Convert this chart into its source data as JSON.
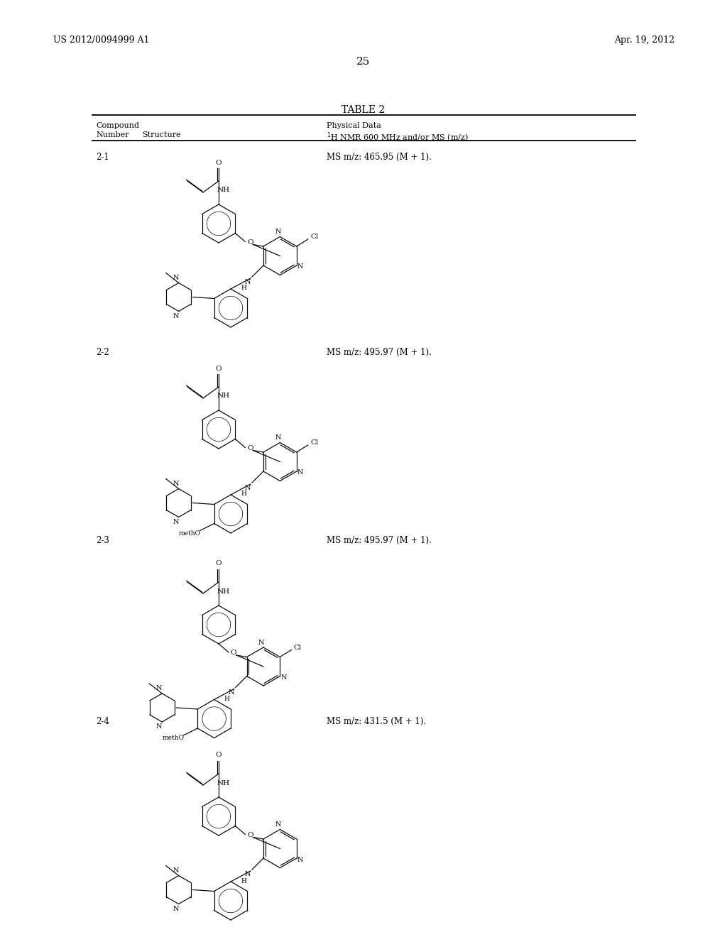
{
  "background_color": "#ffffff",
  "header_left": "US 2012/0094999 A1",
  "header_right": "Apr. 19, 2012",
  "page_number": "25",
  "table_title": "TABLE 2",
  "compounds": [
    {
      "number": "2-1",
      "ms_data": "MS m/z: 465.95 (M + 1).",
      "ytop": 215
    },
    {
      "number": "2-2",
      "ms_data": "MS m/z: 495.97 (M + 1).",
      "ytop": 490
    },
    {
      "number": "2-3",
      "ms_data": "MS m/z: 495.97 (M + 1).",
      "ytop": 755
    },
    {
      "number": "2-4",
      "ms_data": "MS m/z: 431.5 (M + 1).",
      "ytop": 1010
    }
  ]
}
